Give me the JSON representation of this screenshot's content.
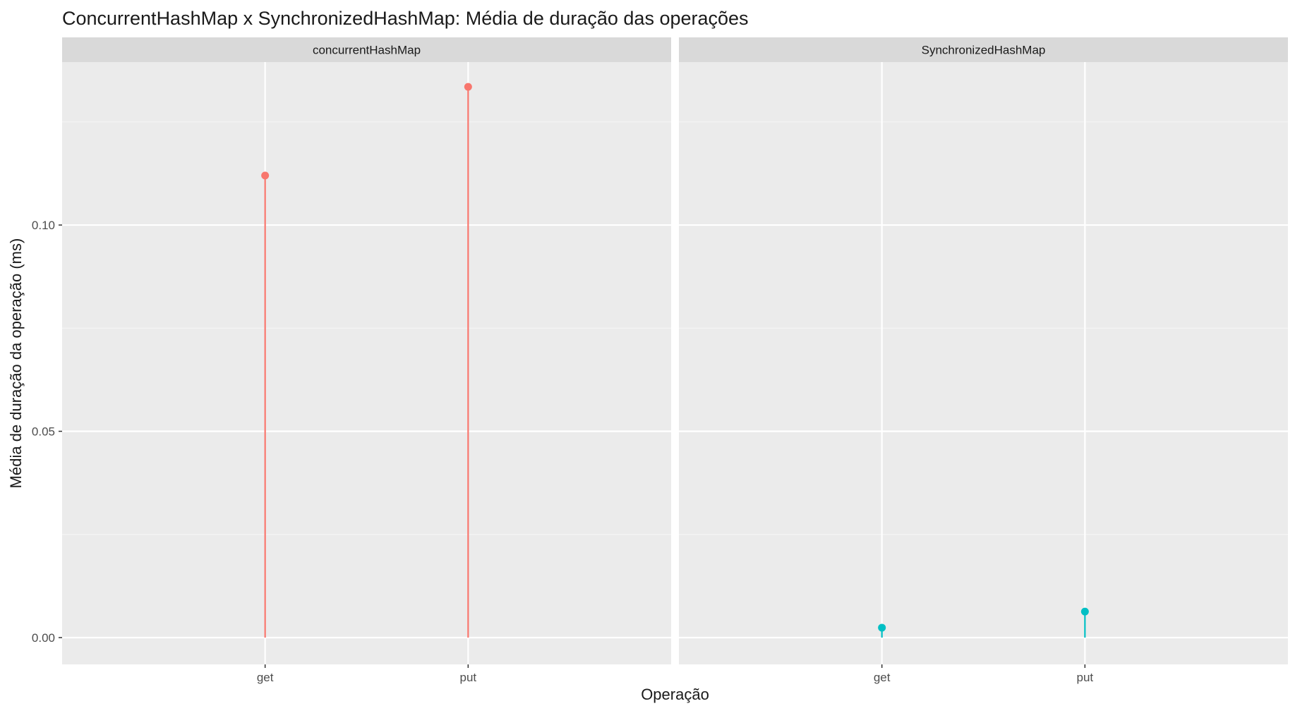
{
  "chart_data": {
    "type": "lollipop",
    "title": "ConcurrentHashMap x SynchronizedHashMap: Média de duração das operações",
    "xlabel": "Operação",
    "ylabel": "Média de duração da operação (ms)",
    "ylim": [
      -0.0065,
      0.1395
    ],
    "y_ticks": [
      0.0,
      0.05,
      0.1
    ],
    "y_tick_labels": [
      "0.00",
      "0.05",
      "0.10"
    ],
    "y_minor_ticks": [
      0.025,
      0.075,
      0.125
    ],
    "categories": [
      "get",
      "put"
    ],
    "grid": true,
    "legend": "none",
    "panels": [
      {
        "strip_label": "concurrentHashMap",
        "color": "#F8766D",
        "values": [
          0.112,
          0.1335
        ]
      },
      {
        "strip_label": "SynchronizedHashMap",
        "color": "#00BFC4",
        "values": [
          0.0024,
          0.0063
        ]
      }
    ]
  },
  "colors": {
    "panel_bg": "#EBEBEB",
    "strip_bg": "#D9D9D9",
    "grid_major": "#FFFFFF",
    "tick_text": "#4D4D4D",
    "text": "#1A1A1A"
  }
}
